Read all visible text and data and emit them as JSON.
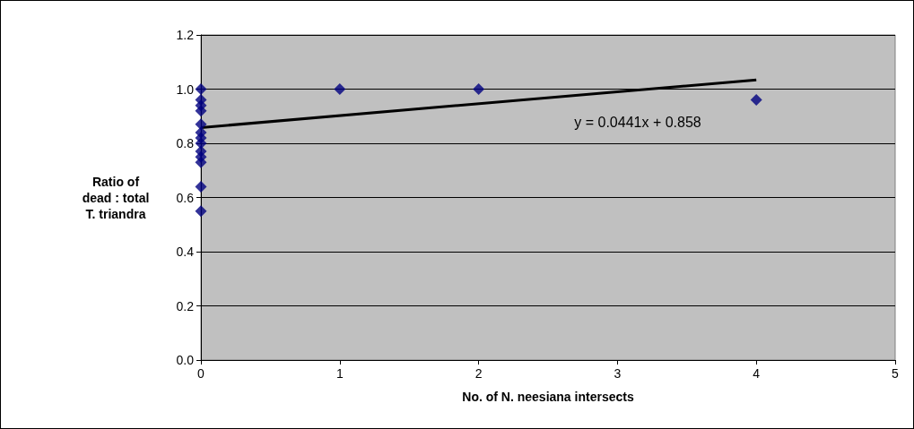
{
  "chart_data": {
    "type": "scatter",
    "xlabel": "No. of N. neesiana intersects",
    "ylabel": "Ratio of\ndead : total\nT. triandra",
    "xlim": [
      0,
      5
    ],
    "xticks": [
      0,
      1,
      2,
      3,
      4,
      5
    ],
    "ylim": [
      0,
      1.2
    ],
    "yticks": [
      {
        "value": 0,
        "label": "0.0"
      },
      {
        "value": 0.2,
        "label": "0.2"
      },
      {
        "value": 0.4,
        "label": "0.4"
      },
      {
        "value": 0.6,
        "label": "0.6"
      },
      {
        "value": 0.8,
        "label": "0.8"
      },
      {
        "value": 1,
        "label": "1.0"
      },
      {
        "value": 1.2,
        "label": "1.2"
      }
    ],
    "grid": "y",
    "series": [
      {
        "color": "#000080",
        "marker": "diamond",
        "x": [
          0,
          0,
          0,
          0,
          0,
          0,
          0,
          0,
          0,
          0,
          0,
          0,
          0,
          1,
          2,
          4
        ],
        "values": [
          1.0,
          0.96,
          0.94,
          0.92,
          0.87,
          0.84,
          0.82,
          0.8,
          0.77,
          0.75,
          0.73,
          0.64,
          0.55,
          1.0,
          1.0,
          0.96
        ]
      },
      {
        "type": "line",
        "color": "#000000",
        "marker": "none",
        "x": [
          0,
          4
        ],
        "values": [
          0.858,
          1.034
        ]
      }
    ],
    "annotations": [
      "y = 0.0441x + 0.858"
    ]
  }
}
